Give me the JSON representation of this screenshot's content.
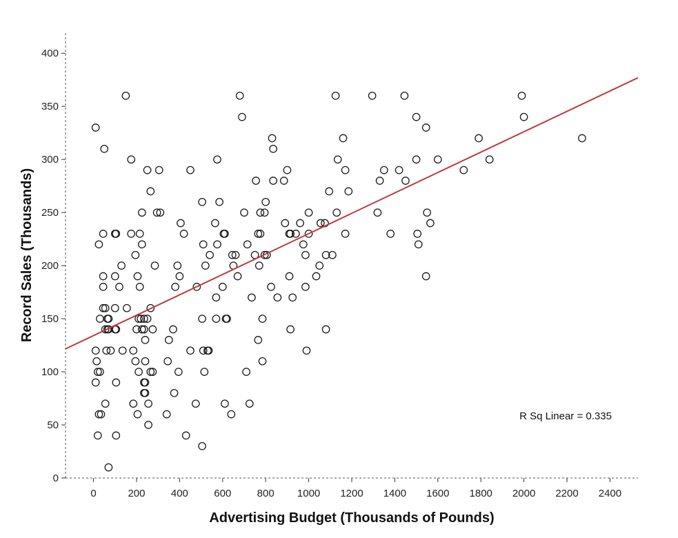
{
  "chart_data": {
    "type": "scatter",
    "title": "",
    "xlabel": "Advertising Budget (Thousands of Pounds)",
    "ylabel": "Record Sales (Thousands)",
    "xlim": [
      -130,
      2530
    ],
    "ylim": [
      0,
      400
    ],
    "x_ticks": [
      0,
      200,
      400,
      600,
      800,
      1000,
      1200,
      1400,
      1600,
      1800,
      2000,
      2200,
      2400
    ],
    "y_ticks": [
      0,
      50,
      100,
      150,
      200,
      250,
      300,
      350,
      400
    ],
    "grid": false,
    "marker": "open-circle",
    "fit_line": {
      "type": "linear",
      "intercept": 134.1,
      "slope": 0.096,
      "color": "#c0393b"
    },
    "annotation": "R Sq Linear = 0.335",
    "points": [
      [
        10,
        330
      ],
      [
        50,
        310
      ],
      [
        150,
        360
      ],
      [
        175,
        300
      ],
      [
        250,
        290
      ],
      [
        305,
        290
      ],
      [
        680,
        360
      ],
      [
        690,
        340
      ],
      [
        575,
        300
      ],
      [
        450,
        290
      ],
      [
        1125,
        360
      ],
      [
        1295,
        360
      ],
      [
        1445,
        360
      ],
      [
        1990,
        360
      ],
      [
        2000,
        340
      ],
      [
        1500,
        340
      ],
      [
        1545,
        330
      ],
      [
        830,
        320
      ],
      [
        835,
        310
      ],
      [
        1160,
        320
      ],
      [
        1790,
        320
      ],
      [
        2270,
        320
      ],
      [
        1135,
        300
      ],
      [
        1500,
        300
      ],
      [
        1600,
        300
      ],
      [
        1840,
        300
      ],
      [
        1720,
        290
      ],
      [
        1420,
        290
      ],
      [
        1350,
        290
      ],
      [
        1170,
        290
      ],
      [
        900,
        290
      ],
      [
        755,
        280
      ],
      [
        835,
        280
      ],
      [
        885,
        280
      ],
      [
        1330,
        280
      ],
      [
        1450,
        280
      ],
      [
        1095,
        270
      ],
      [
        1185,
        270
      ],
      [
        265,
        270
      ],
      [
        800,
        260
      ],
      [
        505,
        260
      ],
      [
        585,
        260
      ],
      [
        225,
        250
      ],
      [
        295,
        250
      ],
      [
        310,
        250
      ],
      [
        700,
        250
      ],
      [
        775,
        250
      ],
      [
        795,
        250
      ],
      [
        1000,
        250
      ],
      [
        1130,
        250
      ],
      [
        1320,
        250
      ],
      [
        1550,
        250
      ],
      [
        1565,
        240
      ],
      [
        1075,
        240
      ],
      [
        1055,
        240
      ],
      [
        960,
        240
      ],
      [
        890,
        240
      ],
      [
        565,
        240
      ],
      [
        405,
        240
      ],
      [
        45,
        230
      ],
      [
        105,
        230
      ],
      [
        100,
        230
      ],
      [
        175,
        230
      ],
      [
        215,
        230
      ],
      [
        420,
        230
      ],
      [
        605,
        230
      ],
      [
        610,
        230
      ],
      [
        765,
        230
      ],
      [
        775,
        230
      ],
      [
        910,
        230
      ],
      [
        915,
        230
      ],
      [
        940,
        230
      ],
      [
        1000,
        230
      ],
      [
        1170,
        230
      ],
      [
        1380,
        230
      ],
      [
        1505,
        230
      ],
      [
        25,
        220
      ],
      [
        225,
        220
      ],
      [
        510,
        220
      ],
      [
        575,
        220
      ],
      [
        715,
        220
      ],
      [
        975,
        220
      ],
      [
        1510,
        220
      ],
      [
        195,
        210
      ],
      [
        540,
        210
      ],
      [
        645,
        210
      ],
      [
        660,
        210
      ],
      [
        750,
        210
      ],
      [
        795,
        210
      ],
      [
        805,
        210
      ],
      [
        985,
        210
      ],
      [
        1080,
        210
      ],
      [
        1110,
        210
      ],
      [
        130,
        200
      ],
      [
        285,
        200
      ],
      [
        390,
        200
      ],
      [
        520,
        200
      ],
      [
        650,
        200
      ],
      [
        770,
        200
      ],
      [
        1050,
        200
      ],
      [
        45,
        190
      ],
      [
        100,
        190
      ],
      [
        205,
        190
      ],
      [
        400,
        190
      ],
      [
        670,
        190
      ],
      [
        910,
        190
      ],
      [
        1035,
        190
      ],
      [
        1545,
        190
      ],
      [
        45,
        180
      ],
      [
        120,
        180
      ],
      [
        215,
        180
      ],
      [
        380,
        180
      ],
      [
        480,
        180
      ],
      [
        600,
        180
      ],
      [
        825,
        180
      ],
      [
        985,
        180
      ],
      [
        45,
        160
      ],
      [
        55,
        160
      ],
      [
        100,
        160
      ],
      [
        155,
        160
      ],
      [
        265,
        160
      ],
      [
        735,
        170
      ],
      [
        570,
        170
      ],
      [
        855,
        170
      ],
      [
        925,
        170
      ],
      [
        30,
        150
      ],
      [
        65,
        150
      ],
      [
        70,
        150
      ],
      [
        210,
        150
      ],
      [
        220,
        150
      ],
      [
        235,
        150
      ],
      [
        250,
        150
      ],
      [
        505,
        150
      ],
      [
        570,
        150
      ],
      [
        615,
        150
      ],
      [
        620,
        150
      ],
      [
        785,
        150
      ],
      [
        55,
        140
      ],
      [
        65,
        140
      ],
      [
        70,
        140
      ],
      [
        100,
        140
      ],
      [
        105,
        140
      ],
      [
        200,
        140
      ],
      [
        225,
        140
      ],
      [
        235,
        140
      ],
      [
        275,
        140
      ],
      [
        370,
        140
      ],
      [
        915,
        140
      ],
      [
        1080,
        140
      ],
      [
        240,
        130
      ],
      [
        350,
        130
      ],
      [
        765,
        130
      ],
      [
        10,
        120
      ],
      [
        60,
        120
      ],
      [
        80,
        120
      ],
      [
        135,
        120
      ],
      [
        185,
        120
      ],
      [
        450,
        120
      ],
      [
        510,
        120
      ],
      [
        530,
        120
      ],
      [
        535,
        120
      ],
      [
        990,
        120
      ],
      [
        15,
        110
      ],
      [
        195,
        110
      ],
      [
        240,
        110
      ],
      [
        345,
        110
      ],
      [
        785,
        110
      ],
      [
        20,
        100
      ],
      [
        30,
        100
      ],
      [
        210,
        100
      ],
      [
        265,
        100
      ],
      [
        275,
        100
      ],
      [
        395,
        100
      ],
      [
        515,
        100
      ],
      [
        710,
        100
      ],
      [
        10,
        90
      ],
      [
        105,
        90
      ],
      [
        235,
        90
      ],
      [
        240,
        90
      ],
      [
        235,
        80
      ],
      [
        240,
        80
      ],
      [
        375,
        80
      ],
      [
        55,
        70
      ],
      [
        185,
        70
      ],
      [
        255,
        70
      ],
      [
        475,
        70
      ],
      [
        610,
        70
      ],
      [
        725,
        70
      ],
      [
        25,
        60
      ],
      [
        35,
        60
      ],
      [
        205,
        60
      ],
      [
        340,
        60
      ],
      [
        640,
        60
      ],
      [
        255,
        50
      ],
      [
        20,
        40
      ],
      [
        105,
        40
      ],
      [
        430,
        40
      ],
      [
        505,
        30
      ],
      [
        70,
        10
      ]
    ]
  }
}
